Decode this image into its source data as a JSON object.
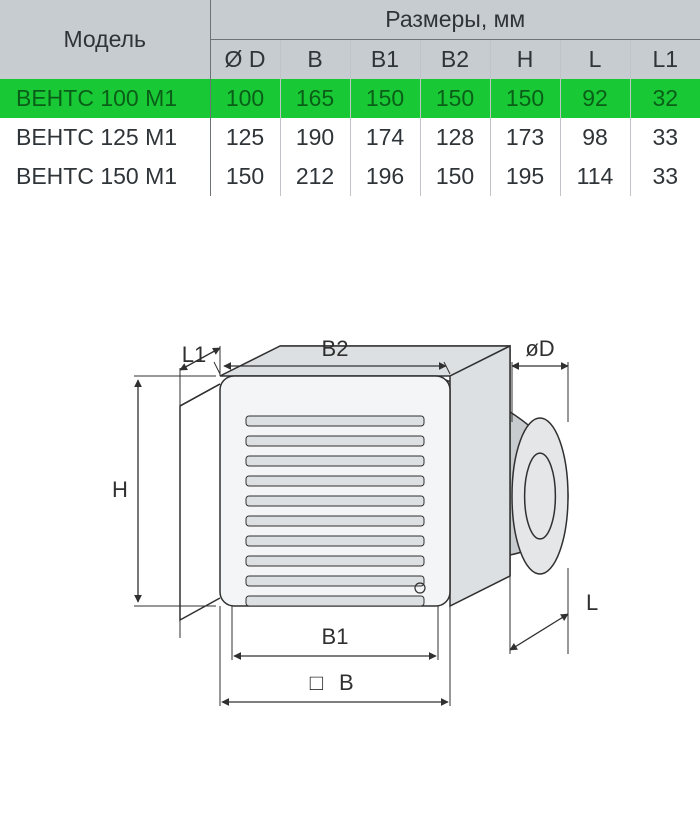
{
  "table": {
    "header_model": "Модель",
    "header_dims": "Размеры, мм",
    "columns": [
      "Ø D",
      "B",
      "B1",
      "B2",
      "H",
      "L",
      "L1"
    ],
    "rows": [
      {
        "model": "ВЕНТС 100 М1",
        "values": [
          "100",
          "165",
          "150",
          "150",
          "150",
          "92",
          "32"
        ],
        "highlight": true
      },
      {
        "model": "ВЕНТС 125 М1",
        "values": [
          "125",
          "190",
          "174",
          "128",
          "173",
          "98",
          "33"
        ],
        "highlight": false
      },
      {
        "model": "ВЕНТС 150 М1",
        "values": [
          "150",
          "212",
          "196",
          "150",
          "195",
          "114",
          "33"
        ],
        "highlight": false
      }
    ],
    "header_bg": "#c7ccd1",
    "header_text": "#2f3438",
    "row_bg": "#ffffff",
    "row_text": "#2f3438",
    "highlight_bg": "#18c935",
    "highlight_text": "#0b5e18",
    "border_color": "#c0c4c8",
    "strong_border_color": "#6b7278",
    "font_size_header": 23,
    "font_size_cells": 23
  },
  "diagram": {
    "labels": {
      "L1": "L1",
      "B2": "B2",
      "D": "øD",
      "H": "H",
      "L": "L",
      "B1": "B1",
      "B": "B",
      "Bsq": "□"
    },
    "stroke": "#303030",
    "panel_fill": "#f4f5f6",
    "panel_shade": "#dde0e3",
    "cylinder_fill": "#e4e6e8",
    "cylinder_shade": "#c9cccf",
    "label_color": "#303030",
    "label_fontsize": 22
  }
}
